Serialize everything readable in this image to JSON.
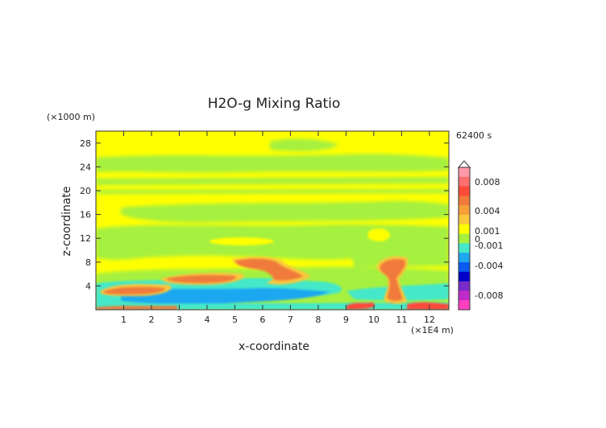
{
  "chart_data": {
    "type": "heatmap",
    "title": "H2O-g Mixing Ratio",
    "xlabel": "x-coordinate",
    "ylabel": "z-coordinate",
    "x_unit": "(×1E4 m)",
    "y_unit": "(×1000 m)",
    "time_label": "62400 s",
    "xlim": [
      0,
      12.7
    ],
    "ylim": [
      0,
      30
    ],
    "x_ticks": [
      "1",
      "2",
      "3",
      "4",
      "5",
      "6",
      "7",
      "8",
      "9",
      "10",
      "11",
      "12"
    ],
    "y_ticks": [
      "4",
      "8",
      "12",
      "16",
      "20",
      "24",
      "28"
    ],
    "colorbar": {
      "labels": [
        "0.008",
        "0.004",
        "0.001",
        "0",
        "-0.001",
        "-0.004",
        "-0.008"
      ],
      "colors": [
        "#ff99a8",
        "#ff6f6f",
        "#ff4a3a",
        "#f07a3a",
        "#f7a03a",
        "#f9c83c",
        "#ffff00",
        "#a6f040",
        "#44e8c8",
        "#1ea8f0",
        "#0a5af0",
        "#0000c8",
        "#7a2ac8",
        "#c02ac8",
        "#ff40c0"
      ]
    },
    "regions": [
      {
        "kind": "positive",
        "x": [
          1,
          2.5
        ],
        "z": [
          2,
          4
        ]
      },
      {
        "kind": "positive",
        "x": [
          3,
          5
        ],
        "z": [
          4,
          6
        ]
      },
      {
        "kind": "positive",
        "x": [
          5,
          6.5
        ],
        "z": [
          6.5,
          8.5
        ]
      },
      {
        "kind": "positive",
        "x": [
          10.5,
          11.3
        ],
        "z": [
          1,
          8.5
        ]
      },
      {
        "kind": "negative",
        "x": [
          0,
          9
        ],
        "z": [
          0.5,
          5
        ]
      },
      {
        "kind": "negative",
        "x": [
          10,
          12.7
        ],
        "z": [
          1,
          5
        ]
      }
    ]
  }
}
